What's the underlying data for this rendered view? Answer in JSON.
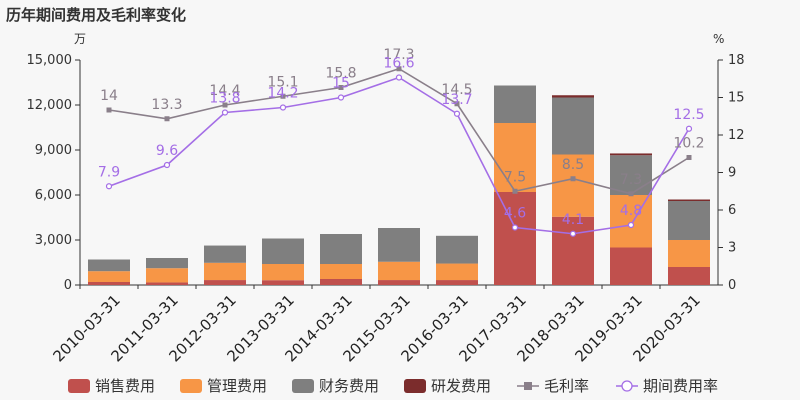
{
  "chart_data": {
    "type": "bar",
    "title": "历年期间费用及毛利率变化",
    "left_unit": "万",
    "right_unit": "%",
    "categories": [
      "2010-03-31",
      "2011-03-31",
      "2012-03-31",
      "2013-03-31",
      "2014-03-31",
      "2015-03-31",
      "2016-03-31",
      "2017-03-31",
      "2018-03-31",
      "2019-03-31",
      "2020-03-31"
    ],
    "stacked": true,
    "ylim": [
      0,
      15000
    ],
    "yticks": [
      "0",
      "3,000",
      "6,000",
      "9,000",
      "12,000",
      "15,000"
    ],
    "y2lim": [
      0,
      18
    ],
    "y2ticks": [
      "0",
      "3",
      "6",
      "9",
      "12",
      "15",
      "18"
    ],
    "series": [
      {
        "name": "销售费用",
        "color": "#c0504d",
        "values": [
          200,
          170,
          330,
          320,
          400,
          330,
          330,
          6200,
          4550,
          2500,
          1200
        ]
      },
      {
        "name": "管理费用",
        "color": "#f79646",
        "values": [
          720,
          950,
          1150,
          1080,
          1000,
          1220,
          1100,
          4600,
          4150,
          3500,
          1800
        ]
      },
      {
        "name": "财务费用",
        "color": "#7f7f7f",
        "values": [
          780,
          680,
          1150,
          1700,
          2000,
          2250,
          1850,
          2500,
          3800,
          2650,
          2600
        ]
      },
      {
        "name": "研发费用",
        "color": "#7b2c2c",
        "values": [
          0,
          0,
          0,
          0,
          0,
          0,
          0,
          0,
          150,
          120,
          100
        ]
      }
    ],
    "lines": [
      {
        "name": "毛利率",
        "color": "#8a7f8a",
        "marker": "square",
        "values": [
          14,
          13.3,
          14.4,
          15.1,
          15.8,
          17.3,
          14.5,
          7.5,
          8.5,
          7.3,
          10.2
        ],
        "labels": [
          "14",
          "13.3",
          "14.4",
          "15.1",
          "15.8",
          "17.3",
          "14.5",
          "7.5",
          "8.5",
          "7.3",
          "10.2"
        ]
      },
      {
        "name": "期间费用率",
        "color": "#a46ee6",
        "marker": "circle",
        "values": [
          7.9,
          9.6,
          13.8,
          14.2,
          15,
          16.6,
          13.7,
          4.6,
          4.1,
          4.8,
          12.5
        ],
        "labels": [
          "7.9",
          "9.6",
          "13.8",
          "14.2",
          "15",
          "16.6",
          "13.7",
          "4.6",
          "4.1",
          "4.8",
          "12.5"
        ]
      }
    ],
    "legend_position": "bottom"
  }
}
